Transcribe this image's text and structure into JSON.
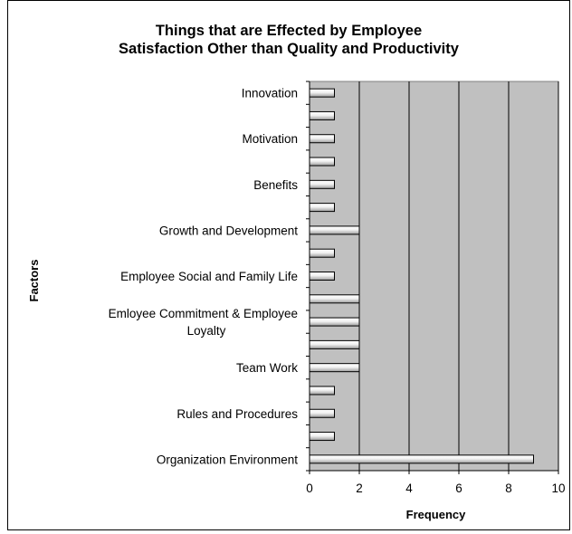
{
  "chart_data": {
    "type": "bar",
    "orientation": "horizontal",
    "title": "Things that are Effected by Employee Satisfaction Other than Quality and Productivity",
    "title_lines": [
      "Things that are Effected by Employee",
      "Satisfaction Other than Quality and Productivity"
    ],
    "xlabel": "Frequency",
    "ylabel": "Factors",
    "xlim": [
      0,
      10
    ],
    "xticks": [
      0,
      2,
      4,
      6,
      8,
      10
    ],
    "grid": true,
    "legend": "none",
    "plot_background": "#c0c0c0",
    "bar_color": "#f2f2f2",
    "categories": [
      {
        "label": "Innovation",
        "lines": [
          "Innovation"
        ],
        "value": 1
      },
      {
        "label": "",
        "lines": [],
        "value": 1
      },
      {
        "label": "Motivation",
        "lines": [
          "Motivation"
        ],
        "value": 1
      },
      {
        "label": "",
        "lines": [],
        "value": 1
      },
      {
        "label": "Benefits",
        "lines": [
          "Benefits"
        ],
        "value": 1
      },
      {
        "label": "",
        "lines": [],
        "value": 1
      },
      {
        "label": "Growth and Development",
        "lines": [
          "Growth and Development"
        ],
        "value": 2
      },
      {
        "label": "",
        "lines": [],
        "value": 1
      },
      {
        "label": "Employee Social and Family Life",
        "lines": [
          "Employee Social and Family Life"
        ],
        "value": 1
      },
      {
        "label": "",
        "lines": [],
        "value": 2
      },
      {
        "label": "Emloyee Commitment & Employee Loyalty",
        "lines": [
          "Emloyee Commitment & Employee",
          "Loyalty"
        ],
        "value": 2
      },
      {
        "label": "",
        "lines": [],
        "value": 2
      },
      {
        "label": "Team Work",
        "lines": [
          "Team Work"
        ],
        "value": 2
      },
      {
        "label": "",
        "lines": [],
        "value": 1
      },
      {
        "label": "Rules and Procedures",
        "lines": [
          "Rules and Procedures"
        ],
        "value": 1
      },
      {
        "label": "",
        "lines": [],
        "value": 1
      },
      {
        "label": "Organization Environment",
        "lines": [
          "Organization Environment"
        ],
        "value": 9
      }
    ]
  }
}
